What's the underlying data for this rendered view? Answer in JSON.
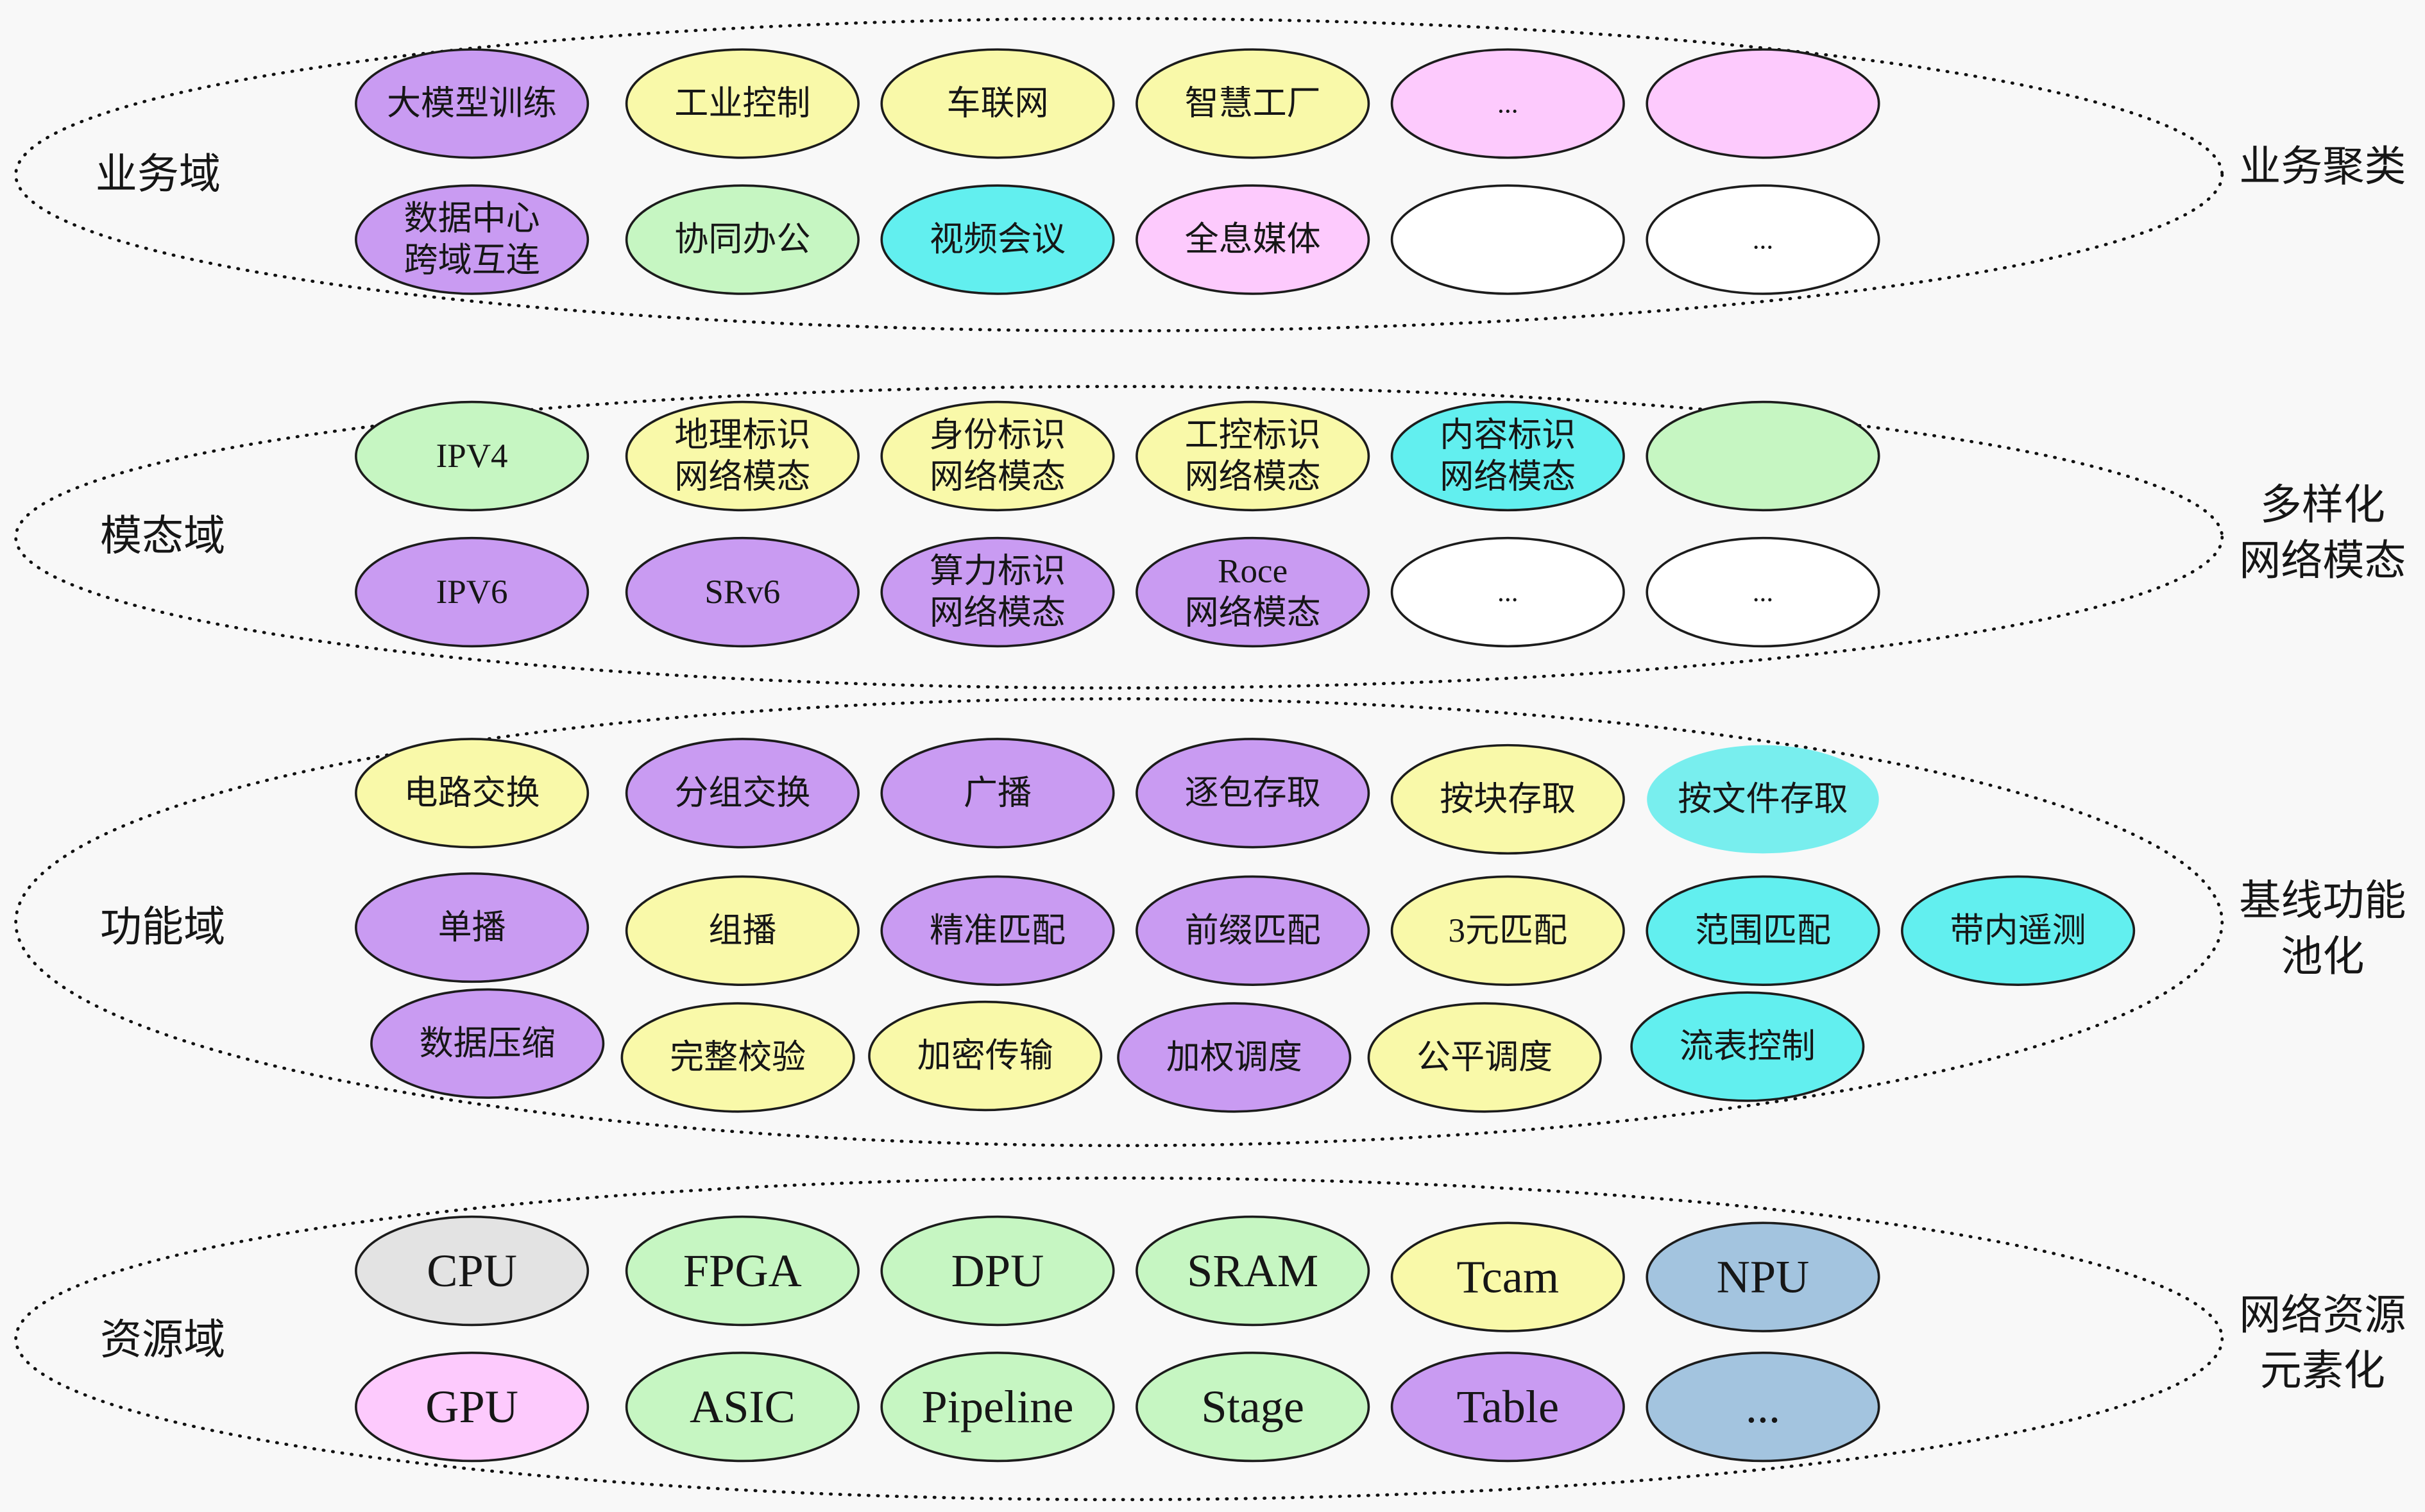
{
  "domains": [
    {
      "name": "业务域",
      "summary": [
        "业务聚类"
      ],
      "nodes": [
        {
          "label": [
            "大模型训练"
          ],
          "fill": "#c99bf2"
        },
        {
          "label": [
            "工业控制"
          ],
          "fill": "#f9f9a9"
        },
        {
          "label": [
            "车联网"
          ],
          "fill": "#f9f9a9"
        },
        {
          "label": [
            "智慧工厂"
          ],
          "fill": "#f9f9a9"
        },
        {
          "label": [
            "..."
          ],
          "fill": "#fdcafd"
        },
        {
          "label": [],
          "fill": "#fdcafd"
        },
        {
          "label": [
            "数据中心",
            "跨域互连"
          ],
          "fill": "#c99bf2"
        },
        {
          "label": [
            "协同办公"
          ],
          "fill": "#c6f6c2"
        },
        {
          "label": [
            "视频会议"
          ],
          "fill": "#62efef"
        },
        {
          "label": [
            "全息媒体"
          ],
          "fill": "#fdcafd"
        },
        {
          "label": [],
          "fill": "#ffffff"
        },
        {
          "label": [
            "..."
          ],
          "fill": "#ffffff"
        }
      ]
    },
    {
      "name": "模态域",
      "summary": [
        "多样化",
        "网络模态"
      ],
      "nodes": [
        {
          "label": [
            "IPV4"
          ],
          "fill": "#c6f6c2"
        },
        {
          "label": [
            "地理标识",
            "网络模态"
          ],
          "fill": "#f9f9a9"
        },
        {
          "label": [
            "身份标识",
            "网络模态"
          ],
          "fill": "#f9f9a9"
        },
        {
          "label": [
            "工控标识",
            "网络模态"
          ],
          "fill": "#f9f9a9"
        },
        {
          "label": [
            "内容标识",
            "网络模态"
          ],
          "fill": "#62efef"
        },
        {
          "label": [],
          "fill": "#c6f6c2"
        },
        {
          "label": [
            "IPV6"
          ],
          "fill": "#c99bf2"
        },
        {
          "label": [
            "SRv6"
          ],
          "fill": "#c99bf2"
        },
        {
          "label": [
            "算力标识",
            "网络模态"
          ],
          "fill": "#c99bf2"
        },
        {
          "label": [
            "Roce",
            "网络模态"
          ],
          "fill": "#c99bf2"
        },
        {
          "label": [
            "..."
          ],
          "fill": "#ffffff"
        },
        {
          "label": [
            "..."
          ],
          "fill": "#ffffff"
        }
      ]
    },
    {
      "name": "功能域",
      "summary": [
        "基线功能",
        "池化"
      ],
      "nodes": [
        {
          "label": [
            "电路交换"
          ],
          "fill": "#f9f9a9"
        },
        {
          "label": [
            "分组交换"
          ],
          "fill": "#c99bf2"
        },
        {
          "label": [
            "广播"
          ],
          "fill": "#c99bf2"
        },
        {
          "label": [
            "逐包存取"
          ],
          "fill": "#c99bf2"
        },
        {
          "label": [
            "按块存取"
          ],
          "fill": "#f9f9a9"
        },
        {
          "label": [
            "按文件存取"
          ],
          "fill": "#78eeee"
        },
        {
          "label": [
            "单播"
          ],
          "fill": "#c99bf2"
        },
        {
          "label": [
            "组播"
          ],
          "fill": "#f9f9a9"
        },
        {
          "label": [
            "精准匹配"
          ],
          "fill": "#c99bf2"
        },
        {
          "label": [
            "前缀匹配"
          ],
          "fill": "#c99bf2"
        },
        {
          "label": [
            "3元匹配"
          ],
          "fill": "#f9f9a9"
        },
        {
          "label": [
            "范围匹配"
          ],
          "fill": "#62efef"
        },
        {
          "label": [
            "带内遥测"
          ],
          "fill": "#62efef"
        },
        {
          "label": [
            "数据压缩"
          ],
          "fill": "#c99bf2"
        },
        {
          "label": [
            "完整校验"
          ],
          "fill": "#f9f9a9"
        },
        {
          "label": [
            "加密传输"
          ],
          "fill": "#f9f9a9"
        },
        {
          "label": [
            "加权调度"
          ],
          "fill": "#c99bf2"
        },
        {
          "label": [
            "公平调度"
          ],
          "fill": "#f9f9a9"
        },
        {
          "label": [
            "流表控制"
          ],
          "fill": "#62efef"
        }
      ]
    },
    {
      "name": "资源域",
      "summary": [
        "网络资源",
        "元素化"
      ],
      "nodes": [
        {
          "label": [
            "CPU"
          ],
          "fill": "#e3e3e3"
        },
        {
          "label": [
            "FPGA"
          ],
          "fill": "#c6f6c2"
        },
        {
          "label": [
            "DPU"
          ],
          "fill": "#c6f6c2"
        },
        {
          "label": [
            "SRAM"
          ],
          "fill": "#c6f6c2"
        },
        {
          "label": [
            "Tcam"
          ],
          "fill": "#f9f9a9"
        },
        {
          "label": [
            "NPU"
          ],
          "fill": "#a3c4df"
        },
        {
          "label": [
            "GPU"
          ],
          "fill": "#fdcafd"
        },
        {
          "label": [
            "ASIC"
          ],
          "fill": "#c6f6c2"
        },
        {
          "label": [
            "Pipeline"
          ],
          "fill": "#c6f6c2"
        },
        {
          "label": [
            "Stage"
          ],
          "fill": "#c6f6c2"
        },
        {
          "label": [
            "Table"
          ],
          "fill": "#c99bf2"
        },
        {
          "label": [
            "..."
          ],
          "fill": "#a3c4df"
        }
      ]
    }
  ]
}
